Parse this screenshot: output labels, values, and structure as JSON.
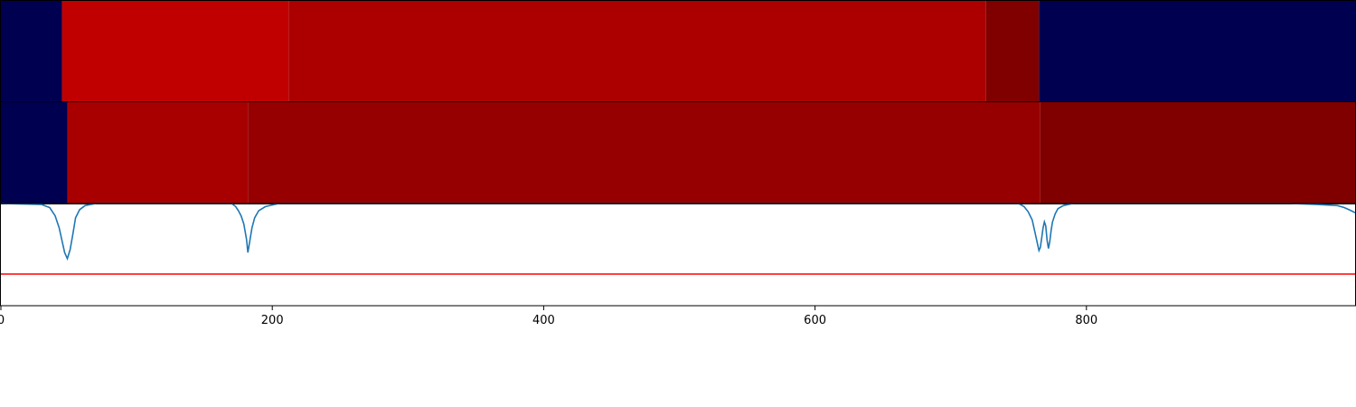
{
  "chart_data": [
    {
      "type": "heatmap",
      "panel": "top-band",
      "xlim": [
        0,
        998
      ],
      "segments": [
        {
          "x0": 0,
          "x1": 45,
          "color": "#000050"
        },
        {
          "x0": 45,
          "x1": 212,
          "color": "#c00000"
        },
        {
          "x0": 212,
          "x1": 726,
          "color": "#ac0000"
        },
        {
          "x0": 726,
          "x1": 765,
          "color": "#800000"
        },
        {
          "x0": 765,
          "x1": 998,
          "color": "#000050"
        }
      ]
    },
    {
      "type": "heatmap",
      "panel": "middle-band",
      "xlim": [
        0,
        998
      ],
      "segments": [
        {
          "x0": 0,
          "x1": 49,
          "color": "#000050"
        },
        {
          "x0": 49,
          "x1": 182,
          "color": "#a80000"
        },
        {
          "x0": 182,
          "x1": 766,
          "color": "#960000"
        },
        {
          "x0": 766,
          "x1": 998,
          "color": "#800000"
        }
      ]
    },
    {
      "type": "line",
      "panel": "signal",
      "xlim": [
        0,
        998
      ],
      "ylim": [
        0,
        1
      ],
      "xticks": [
        0,
        200,
        400,
        600,
        800
      ],
      "xlabel": "",
      "ylabel": "",
      "grid": false,
      "series": [
        {
          "color": "#1f77b4",
          "x": [
            0,
            30,
            36,
            40,
            43,
            45,
            47,
            49,
            51,
            53,
            55,
            58,
            62,
            70,
            170,
            173,
            175,
            177,
            179,
            181,
            182,
            183,
            185,
            187,
            190,
            195,
            205,
            750,
            754,
            757,
            760,
            762,
            764,
            765,
            766,
            767,
            768,
            769,
            770,
            771,
            772,
            773,
            774,
            775,
            777,
            779,
            783,
            790,
            800,
            950,
            970,
            985,
            990,
            995,
            998
          ],
          "y": [
            1.0,
            0.99,
            0.96,
            0.88,
            0.76,
            0.64,
            0.52,
            0.46,
            0.55,
            0.7,
            0.86,
            0.94,
            0.98,
            1.0,
            1.0,
            0.97,
            0.93,
            0.88,
            0.8,
            0.65,
            0.52,
            0.6,
            0.76,
            0.86,
            0.93,
            0.97,
            1.0,
            1.0,
            0.97,
            0.92,
            0.84,
            0.72,
            0.6,
            0.54,
            0.57,
            0.66,
            0.76,
            0.82,
            0.78,
            0.64,
            0.56,
            0.63,
            0.74,
            0.82,
            0.9,
            0.95,
            0.98,
            1.0,
            1.0,
            1.0,
            0.99,
            0.98,
            0.96,
            0.93,
            0.91
          ]
        },
        {
          "color": "#ff0000",
          "x": [
            0,
            998
          ],
          "y": [
            0.31,
            0.31
          ]
        }
      ]
    }
  ]
}
